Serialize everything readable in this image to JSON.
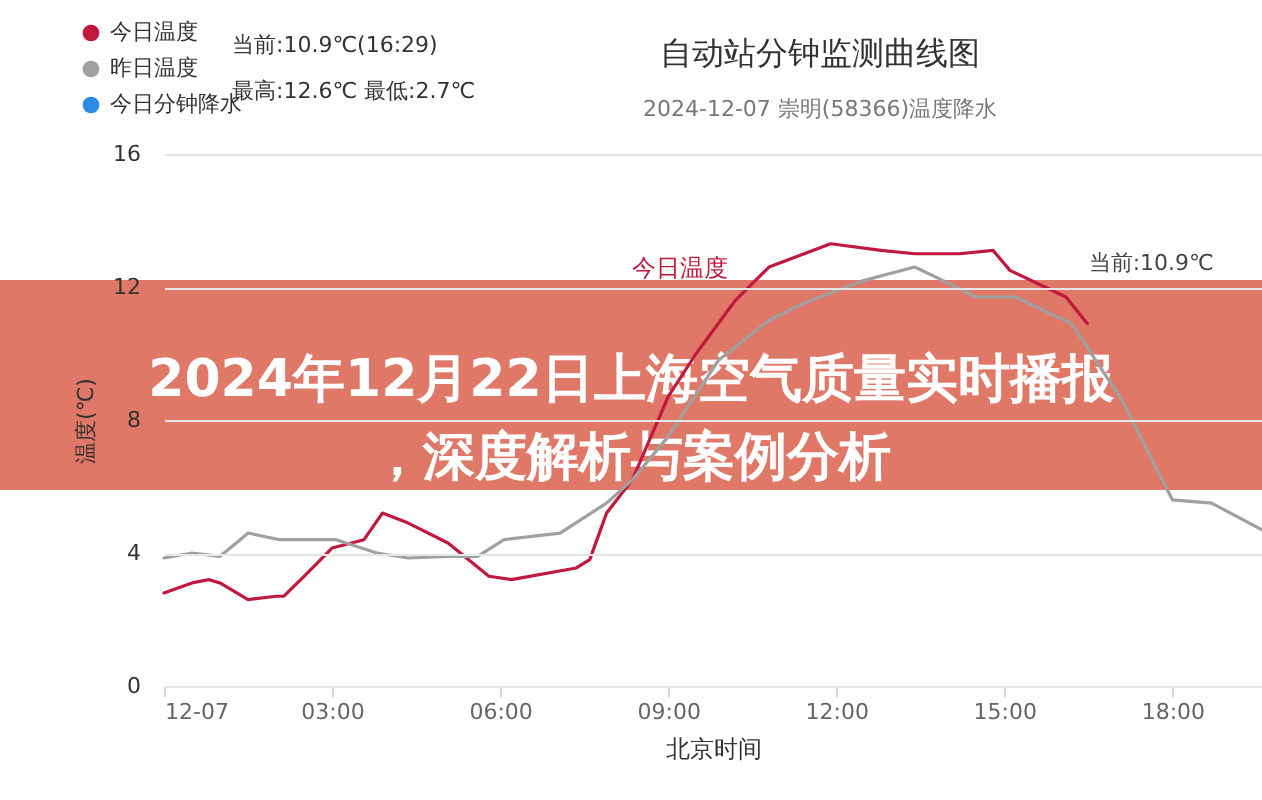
{
  "chart_data": {
    "type": "line",
    "title": "自动站分钟监测曲线图",
    "subtitle": "2024-12-07 崇明(58366)温度降水",
    "xlabel": "北京时间",
    "ylabel": "温度(℃)",
    "annotations": [
      "2024年12月22日上海空气质量实时播报，深度解析与案例分析",
      "当前:10.9℃(16:29)",
      "最高:12.6℃ 最低:2.7℃",
      "今日温度",
      {
        "text": "当前:10.9℃",
        "x": 16.48,
        "y": 10.9
      }
    ],
    "series": [
      {
        "name": "今日温度",
        "color": "#c0183e",
        "x": [
          0,
          0.5,
          0.8,
          1.0,
          1.5,
          2.0,
          2.14,
          2.5,
          3.0,
          3.57,
          3.9,
          4.36,
          5.07,
          5.8,
          6.2,
          7.36,
          7.6,
          7.9,
          8.36,
          9.0,
          9.5,
          10.2,
          10.8,
          11.9,
          12.8,
          13.4,
          14.2,
          14.8,
          15.1,
          16.1,
          16.48
        ],
        "values": [
          2.8,
          3.1,
          3.2,
          3.1,
          2.6,
          2.7,
          2.7,
          3.3,
          4.15,
          4.4,
          5.2,
          4.9,
          4.3,
          3.3,
          3.2,
          3.55,
          3.8,
          5.2,
          6.2,
          8.7,
          10.0,
          11.6,
          12.6,
          13.3,
          13.1,
          13.0,
          13.0,
          13.1,
          12.5,
          11.7,
          10.9
        ]
      },
      {
        "name": "昨日温度",
        "color": "#a0a0a0",
        "x": [
          0,
          0.5,
          1.0,
          1.36,
          1.5,
          2.07,
          3.07,
          3.8,
          4.36,
          5.07,
          5.6,
          6.07,
          7.07,
          7.9,
          8.36,
          9.0,
          9.9,
          10.8,
          11.4,
          12.5,
          13.4,
          13.9,
          14.5,
          15.2,
          16.2,
          17.1,
          18.0,
          18.7,
          19.6
        ],
        "values": [
          3.85,
          4.0,
          3.9,
          4.4,
          4.6,
          4.4,
          4.4,
          4.0,
          3.85,
          3.9,
          3.9,
          4.4,
          4.6,
          5.5,
          6.2,
          7.5,
          9.8,
          11.0,
          11.5,
          12.2,
          12.6,
          12.2,
          11.7,
          11.7,
          10.9,
          8.6,
          5.6,
          5.5,
          4.7
        ]
      },
      {
        "name": "今日分钟降水",
        "color": "#2b8ce6",
        "type": "scatter"
      }
    ],
    "xlim": [
      0,
      19.6
    ],
    "xticks": [
      {
        "value": 0,
        "label": "12-07"
      },
      {
        "value": 3,
        "label": "03:00"
      },
      {
        "value": 6,
        "label": "06:00"
      },
      {
        "value": 9,
        "label": "09:00"
      },
      {
        "value": 12,
        "label": "12:00"
      },
      {
        "value": 15,
        "label": "15:00"
      },
      {
        "value": 18,
        "label": "18:00"
      }
    ],
    "ylim": [
      0,
      16
    ],
    "yticks": [
      0,
      4,
      8,
      12,
      16
    ],
    "grid": "y",
    "legend": "top left",
    "marker": "none"
  }
}
